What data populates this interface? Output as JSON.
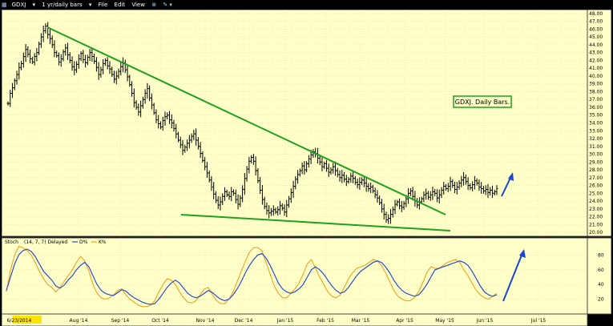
{
  "toolbar": {
    "symbol": "GDXJ",
    "period": "1 yr/daily bars",
    "menu_file": "File",
    "menu_edit": "Edit",
    "menu_view": "View"
  },
  "colors": {
    "background": "#ffffc8",
    "bars": "#000000",
    "trendline": "#1fa01f",
    "stoch_k": "#2a4ccf",
    "stoch_d": "#f2a21c",
    "arrow": "#1a45d8",
    "date_highlight": "#ffe400"
  },
  "chart_data": [
    {
      "type": "ohlc",
      "annotation": "GDXJ. Daily Bars.",
      "ylim": [
        19.5,
        48.5
      ],
      "y_ticks": [
        "20.00",
        "21.00",
        "22.00",
        "23.00",
        "24.00",
        "25.00",
        "26.00",
        "27.00",
        "28.00",
        "29.00",
        "30.00",
        "31.00",
        "32.00",
        "33.00",
        "34.00",
        "35.00",
        "36.00",
        "37.00",
        "38.00",
        "39.00",
        "40.00",
        "41.00",
        "42.00",
        "43.00",
        "44.00",
        "45.00",
        "46.00",
        "47.00",
        "48.00"
      ],
      "x_labels": [
        "6/23/2014",
        "Aug '14",
        "Sep '14",
        "Oct '14",
        "Nov '14",
        "Dec '14",
        "Jan '15",
        "Feb '15",
        "Mar '15",
        "Apr '15",
        "May '15",
        "Jun '15",
        "Jul '15"
      ],
      "closes": [
        36.5,
        37.8,
        38.5,
        39.4,
        40.2,
        41.1,
        41.6,
        42.5,
        43.4,
        42.8,
        42.2,
        41.8,
        42.5,
        43.0,
        44.1,
        45.0,
        45.8,
        46.4,
        45.3,
        44.8,
        44.0,
        43.0,
        42.6,
        41.8,
        42.2,
        43.1,
        43.6,
        42.7,
        42.0,
        41.2,
        40.8,
        41.5,
        42.2,
        42.9,
        42.1,
        41.7,
        42.4,
        43.0,
        42.5,
        41.9,
        41.1,
        40.2,
        40.8,
        41.6,
        42.0,
        41.3,
        40.9,
        40.2,
        39.6,
        40.0,
        40.6,
        41.2,
        41.7,
        40.8,
        39.9,
        38.9,
        37.8,
        36.6,
        36.0,
        35.4,
        36.2,
        37.0,
        37.8,
        38.4,
        37.2,
        36.3,
        35.3,
        34.4,
        33.9,
        33.5,
        34.3,
        34.8,
        35.0,
        34.4,
        34.0,
        33.3,
        32.6,
        31.8,
        31.2,
        30.5,
        30.9,
        31.4,
        31.8,
        32.3,
        32.6,
        31.8,
        31.0,
        30.1,
        29.2,
        28.4,
        27.6,
        26.7,
        25.8,
        24.9,
        24.1,
        23.5,
        23.9,
        24.6,
        25.2,
        24.8,
        24.6,
        25.2,
        25.0,
        24.2,
        23.6,
        24.4,
        25.5,
        26.9,
        28.1,
        29.1,
        29.6,
        29.1,
        27.9,
        26.6,
        25.4,
        24.2,
        23.3,
        22.8,
        22.5,
        22.7,
        22.9,
        22.6,
        22.9,
        23.4,
        23.1,
        22.6,
        23.5,
        24.3,
        25.1,
        25.9,
        26.8,
        27.4,
        27.9,
        28.5,
        28.0,
        28.8,
        29.4,
        29.9,
        30.3,
        30.1,
        29.5,
        29.0,
        28.4,
        28.8,
        28.2,
        27.7,
        28.0,
        28.4,
        27.9,
        27.4,
        27.0,
        27.3,
        26.8,
        26.5,
        26.8,
        27.2,
        26.9,
        26.4,
        26.1,
        26.4,
        26.7,
        26.3,
        25.9,
        25.6,
        25.8,
        25.3,
        24.8,
        24.4,
        23.8,
        23.0,
        22.3,
        21.6,
        21.8,
        22.3,
        22.9,
        23.6,
        23.9,
        23.4,
        23.2,
        23.7,
        24.3,
        25.0,
        25.3,
        24.6,
        24.0,
        23.5,
        23.9,
        24.3,
        24.8,
        25.0,
        24.5,
        24.8,
        25.2,
        25.0,
        24.4,
        24.8,
        25.4,
        25.9,
        25.6,
        25.9,
        26.5,
        26.0,
        25.5,
        25.8,
        26.3,
        26.7,
        27.0,
        26.5,
        26.0,
        25.7,
        26.1,
        26.6,
        26.3,
        25.8,
        25.6,
        25.3,
        25.5,
        25.1,
        25.4,
        25.0,
        25.2,
        25.6
      ]
    },
    {
      "type": "line",
      "title": "Stoch",
      "params": "(14, 7, 7) Delayed",
      "series": [
        {
          "name": "D%",
          "values": [
            32,
            50,
            68,
            80,
            86,
            88,
            85,
            78,
            68,
            58,
            52,
            46,
            38,
            35,
            39,
            46,
            52,
            60,
            66,
            70,
            64,
            52,
            40,
            32,
            28,
            26,
            25,
            29,
            33,
            31,
            26,
            22,
            19,
            16,
            14,
            13,
            14,
            20,
            28,
            36,
            42,
            46,
            42,
            35,
            28,
            24,
            22,
            24,
            28,
            32,
            29,
            24,
            20,
            18,
            20,
            26,
            34,
            44,
            56,
            66,
            74,
            80,
            82,
            76,
            66,
            54,
            42,
            34,
            30,
            28,
            30,
            34,
            40,
            50,
            60,
            64,
            60,
            54,
            46,
            38,
            32,
            28,
            30,
            36,
            44,
            52,
            58,
            62,
            66,
            70,
            72,
            70,
            64,
            56,
            46,
            38,
            32,
            28,
            26,
            24,
            26,
            32,
            40,
            50,
            60,
            62,
            64,
            66,
            68,
            70,
            72,
            70,
            66,
            58,
            48,
            38,
            30,
            26,
            24,
            26
          ]
        },
        {
          "name": "K%",
          "values": [
            30,
            60,
            80,
            92,
            90,
            86,
            80,
            70,
            58,
            48,
            40,
            36,
            30,
            36,
            44,
            52,
            60,
            70,
            78,
            72,
            58,
            40,
            28,
            22,
            20,
            22,
            26,
            32,
            34,
            26,
            20,
            16,
            12,
            10,
            10,
            12,
            18,
            30,
            40,
            48,
            46,
            40,
            30,
            22,
            16,
            15,
            18,
            26,
            34,
            36,
            26,
            18,
            14,
            14,
            20,
            30,
            44,
            58,
            72,
            84,
            90,
            90,
            86,
            70,
            54,
            38,
            28,
            22,
            22,
            28,
            34,
            42,
            54,
            68,
            74,
            62,
            50,
            40,
            30,
            24,
            22,
            26,
            36,
            48,
            56,
            62,
            64,
            66,
            70,
            74,
            72,
            66,
            56,
            44,
            32,
            24,
            20,
            18,
            18,
            22,
            30,
            42,
            56,
            64,
            62,
            62,
            66,
            70,
            72,
            74,
            70,
            60,
            52,
            42,
            32,
            26,
            22,
            20,
            24,
            28
          ]
        }
      ],
      "y_ticks": [
        "20",
        "40",
        "60",
        "80"
      ],
      "ylim": [
        0,
        100
      ]
    }
  ]
}
